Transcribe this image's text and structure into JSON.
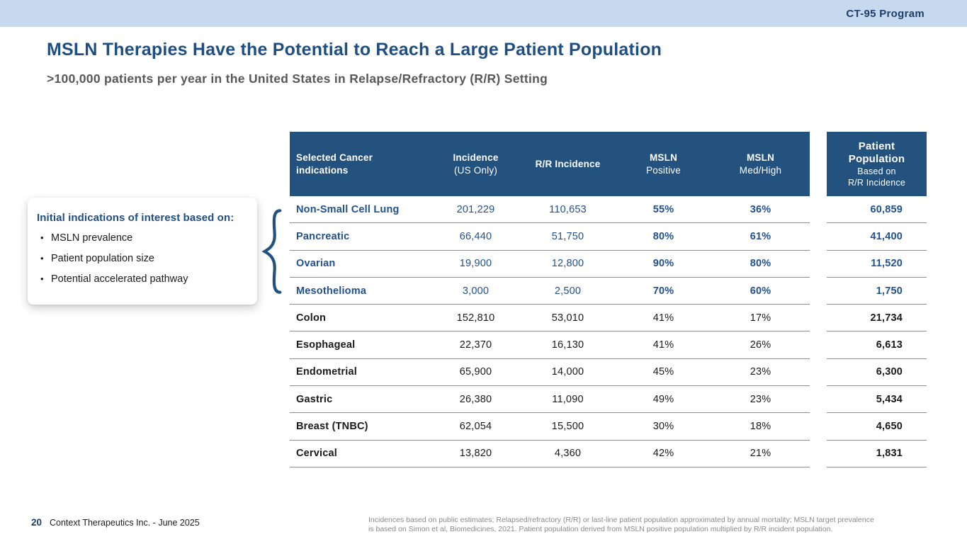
{
  "banner": {
    "program_label": "CT-95 Program"
  },
  "header": {
    "title": "MSLN Therapies Have the Potential to Reach a Large Patient Population",
    "subtitle": ">100,000 patients per year in the United States in Relapse/Refractory (R/R) Setting"
  },
  "callout": {
    "title": "Initial indications of interest based on:",
    "bullet_glyph": "•",
    "bullets": [
      "MSLN prevalence",
      "Patient population size",
      "Potential accelerated pathway"
    ]
  },
  "table": {
    "columns": {
      "indication": {
        "line1": "Selected Cancer",
        "line2": "indications"
      },
      "incidence": {
        "line1": "Incidence",
        "line2": "(US Only)"
      },
      "rr_incidence": "R/R Incidence",
      "msln_positive": {
        "line1": "MSLN",
        "line2": "Positive"
      },
      "msln_med_high": {
        "line1": "MSLN",
        "line2": "Med/High"
      }
    },
    "patient_population_header": {
      "line1": "Patient",
      "line2": "Population",
      "line3": "Based on",
      "line4": "R/R Incidence"
    },
    "rows": [
      {
        "indication": "Non-Small Cell Lung",
        "incidence": "201,229",
        "rr_incidence": "110,653",
        "msln_positive": "55%",
        "msln_med_high": "36%",
        "patient_population": "60,859",
        "highlighted": true
      },
      {
        "indication": "Pancreatic",
        "incidence": "66,440",
        "rr_incidence": "51,750",
        "msln_positive": "80%",
        "msln_med_high": "61%",
        "patient_population": "41,400",
        "highlighted": true
      },
      {
        "indication": "Ovarian",
        "incidence": "19,900",
        "rr_incidence": "12,800",
        "msln_positive": "90%",
        "msln_med_high": "80%",
        "patient_population": "11,520",
        "highlighted": true
      },
      {
        "indication": "Mesothelioma",
        "incidence": "3,000",
        "rr_incidence": "2,500",
        "msln_positive": "70%",
        "msln_med_high": "60%",
        "patient_population": "1,750",
        "highlighted": true
      },
      {
        "indication": "Colon",
        "incidence": "152,810",
        "rr_incidence": "53,010",
        "msln_positive": "41%",
        "msln_med_high": "17%",
        "patient_population": "21,734",
        "highlighted": false
      },
      {
        "indication": "Esophageal",
        "incidence": "22,370",
        "rr_incidence": "16,130",
        "msln_positive": "41%",
        "msln_med_high": "26%",
        "patient_population": "6,613",
        "highlighted": false
      },
      {
        "indication": "Endometrial",
        "incidence": "65,900",
        "rr_incidence": "14,000",
        "msln_positive": "45%",
        "msln_med_high": "23%",
        "patient_population": "6,300",
        "highlighted": false
      },
      {
        "indication": "Gastric",
        "incidence": "26,380",
        "rr_incidence": "11,090",
        "msln_positive": "49%",
        "msln_med_high": "23%",
        "patient_population": "5,434",
        "highlighted": false
      },
      {
        "indication": "Breast (TNBC)",
        "incidence": "62,054",
        "rr_incidence": "15,500",
        "msln_positive": "30%",
        "msln_med_high": "18%",
        "patient_population": "4,650",
        "highlighted": false
      },
      {
        "indication": "Cervical",
        "incidence": "13,820",
        "rr_incidence": "4,360",
        "msln_positive": "42%",
        "msln_med_high": "21%",
        "patient_population": "1,831",
        "highlighted": false
      }
    ]
  },
  "footer": {
    "page_number": "20",
    "company": "Context Therapeutics Inc. -  June 2025",
    "footnote_line1": "Incidences based on public estimates; Relapsed/refractory (R/R) or last-line patient population approximated by annual mortality; MSLN target prevalence",
    "footnote_line2": "is based on Simon et al, Biomedicines, 2021. Patient population derived from MSLN positive population multiplied by R/R incident population."
  },
  "colors": {
    "banner_blue": "#c7d9ef",
    "header_navy": "#24527e",
    "title_blue": "#1e4e82",
    "highlight_blue": "#20518e",
    "subtitle_gray": "#57585a",
    "footnote_gray": "#8a8a8a",
    "row_line_gray": "#8c8c8c"
  }
}
